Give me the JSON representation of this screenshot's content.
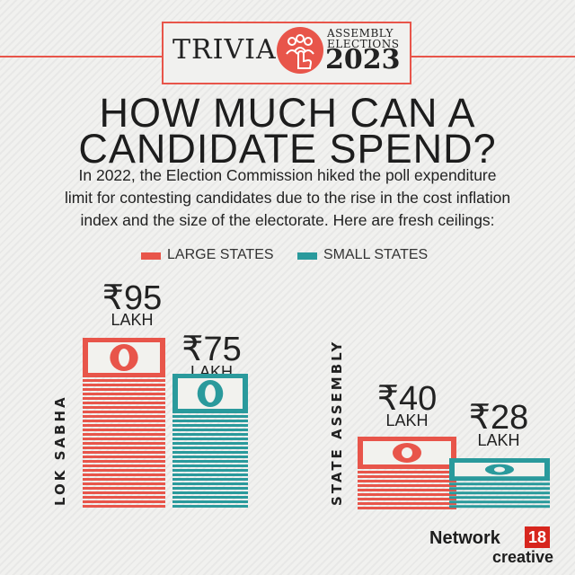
{
  "header": {
    "trivia": "TRIVIA",
    "assembly_line1": "ASSEMBLY",
    "assembly_line2": "ELECTIONS",
    "year": "2023"
  },
  "headline": {
    "line1": "HOW MUCH CAN A",
    "line2": "CANDIDATE SPEND?"
  },
  "description": {
    "line1": "In 2022, the Election Commission hiked the poll expenditure",
    "line2": "limit for contesting candidates due to the rise in the cost inflation",
    "line3": "index and the size of the electorate. Here are fresh ceilings:"
  },
  "legend": {
    "large": "LARGE STATES",
    "small": "SMALL STATES"
  },
  "colors": {
    "large": "#e8554a",
    "small": "#2a9a9c",
    "note_face": "#f2f2ee",
    "ink": "#1d1d1d"
  },
  "chart_data": {
    "type": "bar",
    "categories": [
      "LOK SABHA",
      "STATE ASSEMBLY"
    ],
    "series": [
      {
        "name": "LARGE STATES",
        "values": [
          95,
          40
        ],
        "labels": [
          "₹95",
          "₹40"
        ]
      },
      {
        "name": "SMALL STATES",
        "values": [
          75,
          28
        ],
        "labels": [
          "₹75",
          "₹28"
        ]
      }
    ],
    "unit_label": "LAKH",
    "title": "HOW MUCH CAN A CANDIDATE SPEND?"
  },
  "footer": {
    "brand": "Network",
    "brand_num": "18",
    "brand_sub": "creative"
  }
}
